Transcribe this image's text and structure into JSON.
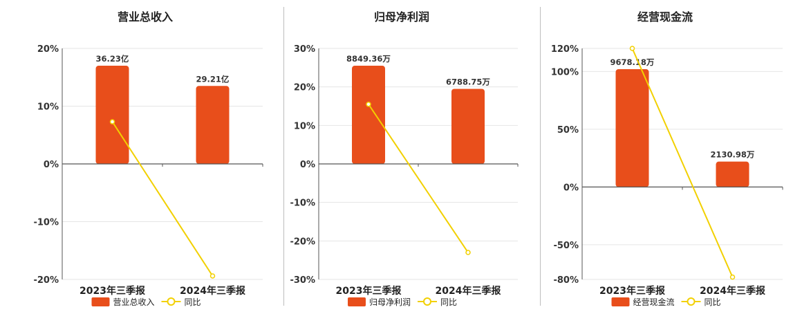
{
  "chart_data": [
    {
      "type": "bar",
      "title": "营业总收入",
      "categories": [
        "2023年三季报",
        "2024年三季报"
      ],
      "series": [
        {
          "name": "营业总收入",
          "kind": "bar",
          "values": [
            17,
            13.5
          ],
          "labels": [
            "36.23亿",
            "29.21亿"
          ]
        },
        {
          "name": "同比",
          "kind": "line",
          "values": [
            7.3,
            -19.4
          ]
        }
      ],
      "yticks": [
        "20%",
        "10%",
        "0%",
        "-10%",
        "-20%"
      ],
      "ylim": [
        -20,
        20
      ],
      "grid": true,
      "legend": "bottom"
    },
    {
      "type": "bar",
      "title": "归母净利润",
      "categories": [
        "2023年三季报",
        "2024年三季报"
      ],
      "series": [
        {
          "name": "归母净利润",
          "kind": "bar",
          "values": [
            25.5,
            19.5
          ],
          "labels": [
            "8849.36万",
            "6788.75万"
          ]
        },
        {
          "name": "同比",
          "kind": "line",
          "values": [
            15.5,
            -23
          ]
        }
      ],
      "yticks": [
        "30%",
        "20%",
        "10%",
        "0%",
        "-10%",
        "-20%",
        "-30%"
      ],
      "ylim": [
        -30,
        30
      ],
      "grid": true,
      "legend": "bottom"
    },
    {
      "type": "bar",
      "title": "经营现金流",
      "categories": [
        "2023年三季报",
        "2024年三季报"
      ],
      "series": [
        {
          "name": "经营现金流",
          "kind": "bar",
          "values": [
            102,
            22
          ],
          "labels": [
            "9678.18万",
            "2130.98万"
          ]
        },
        {
          "name": "同比",
          "kind": "line",
          "values": [
            120,
            -78
          ]
        }
      ],
      "yticks": [
        "120%",
        "100%",
        "50%",
        "0%",
        "-50%",
        "-80%"
      ],
      "ytick_values": [
        120,
        100,
        50,
        0,
        -50,
        -80
      ],
      "ylim": [
        -80,
        120
      ],
      "grid": true,
      "legend": "bottom"
    }
  ],
  "colors": {
    "bar": "#e84e1b",
    "line": "#f2d000",
    "grid": "#e5e5e5",
    "axis": "#555555"
  }
}
